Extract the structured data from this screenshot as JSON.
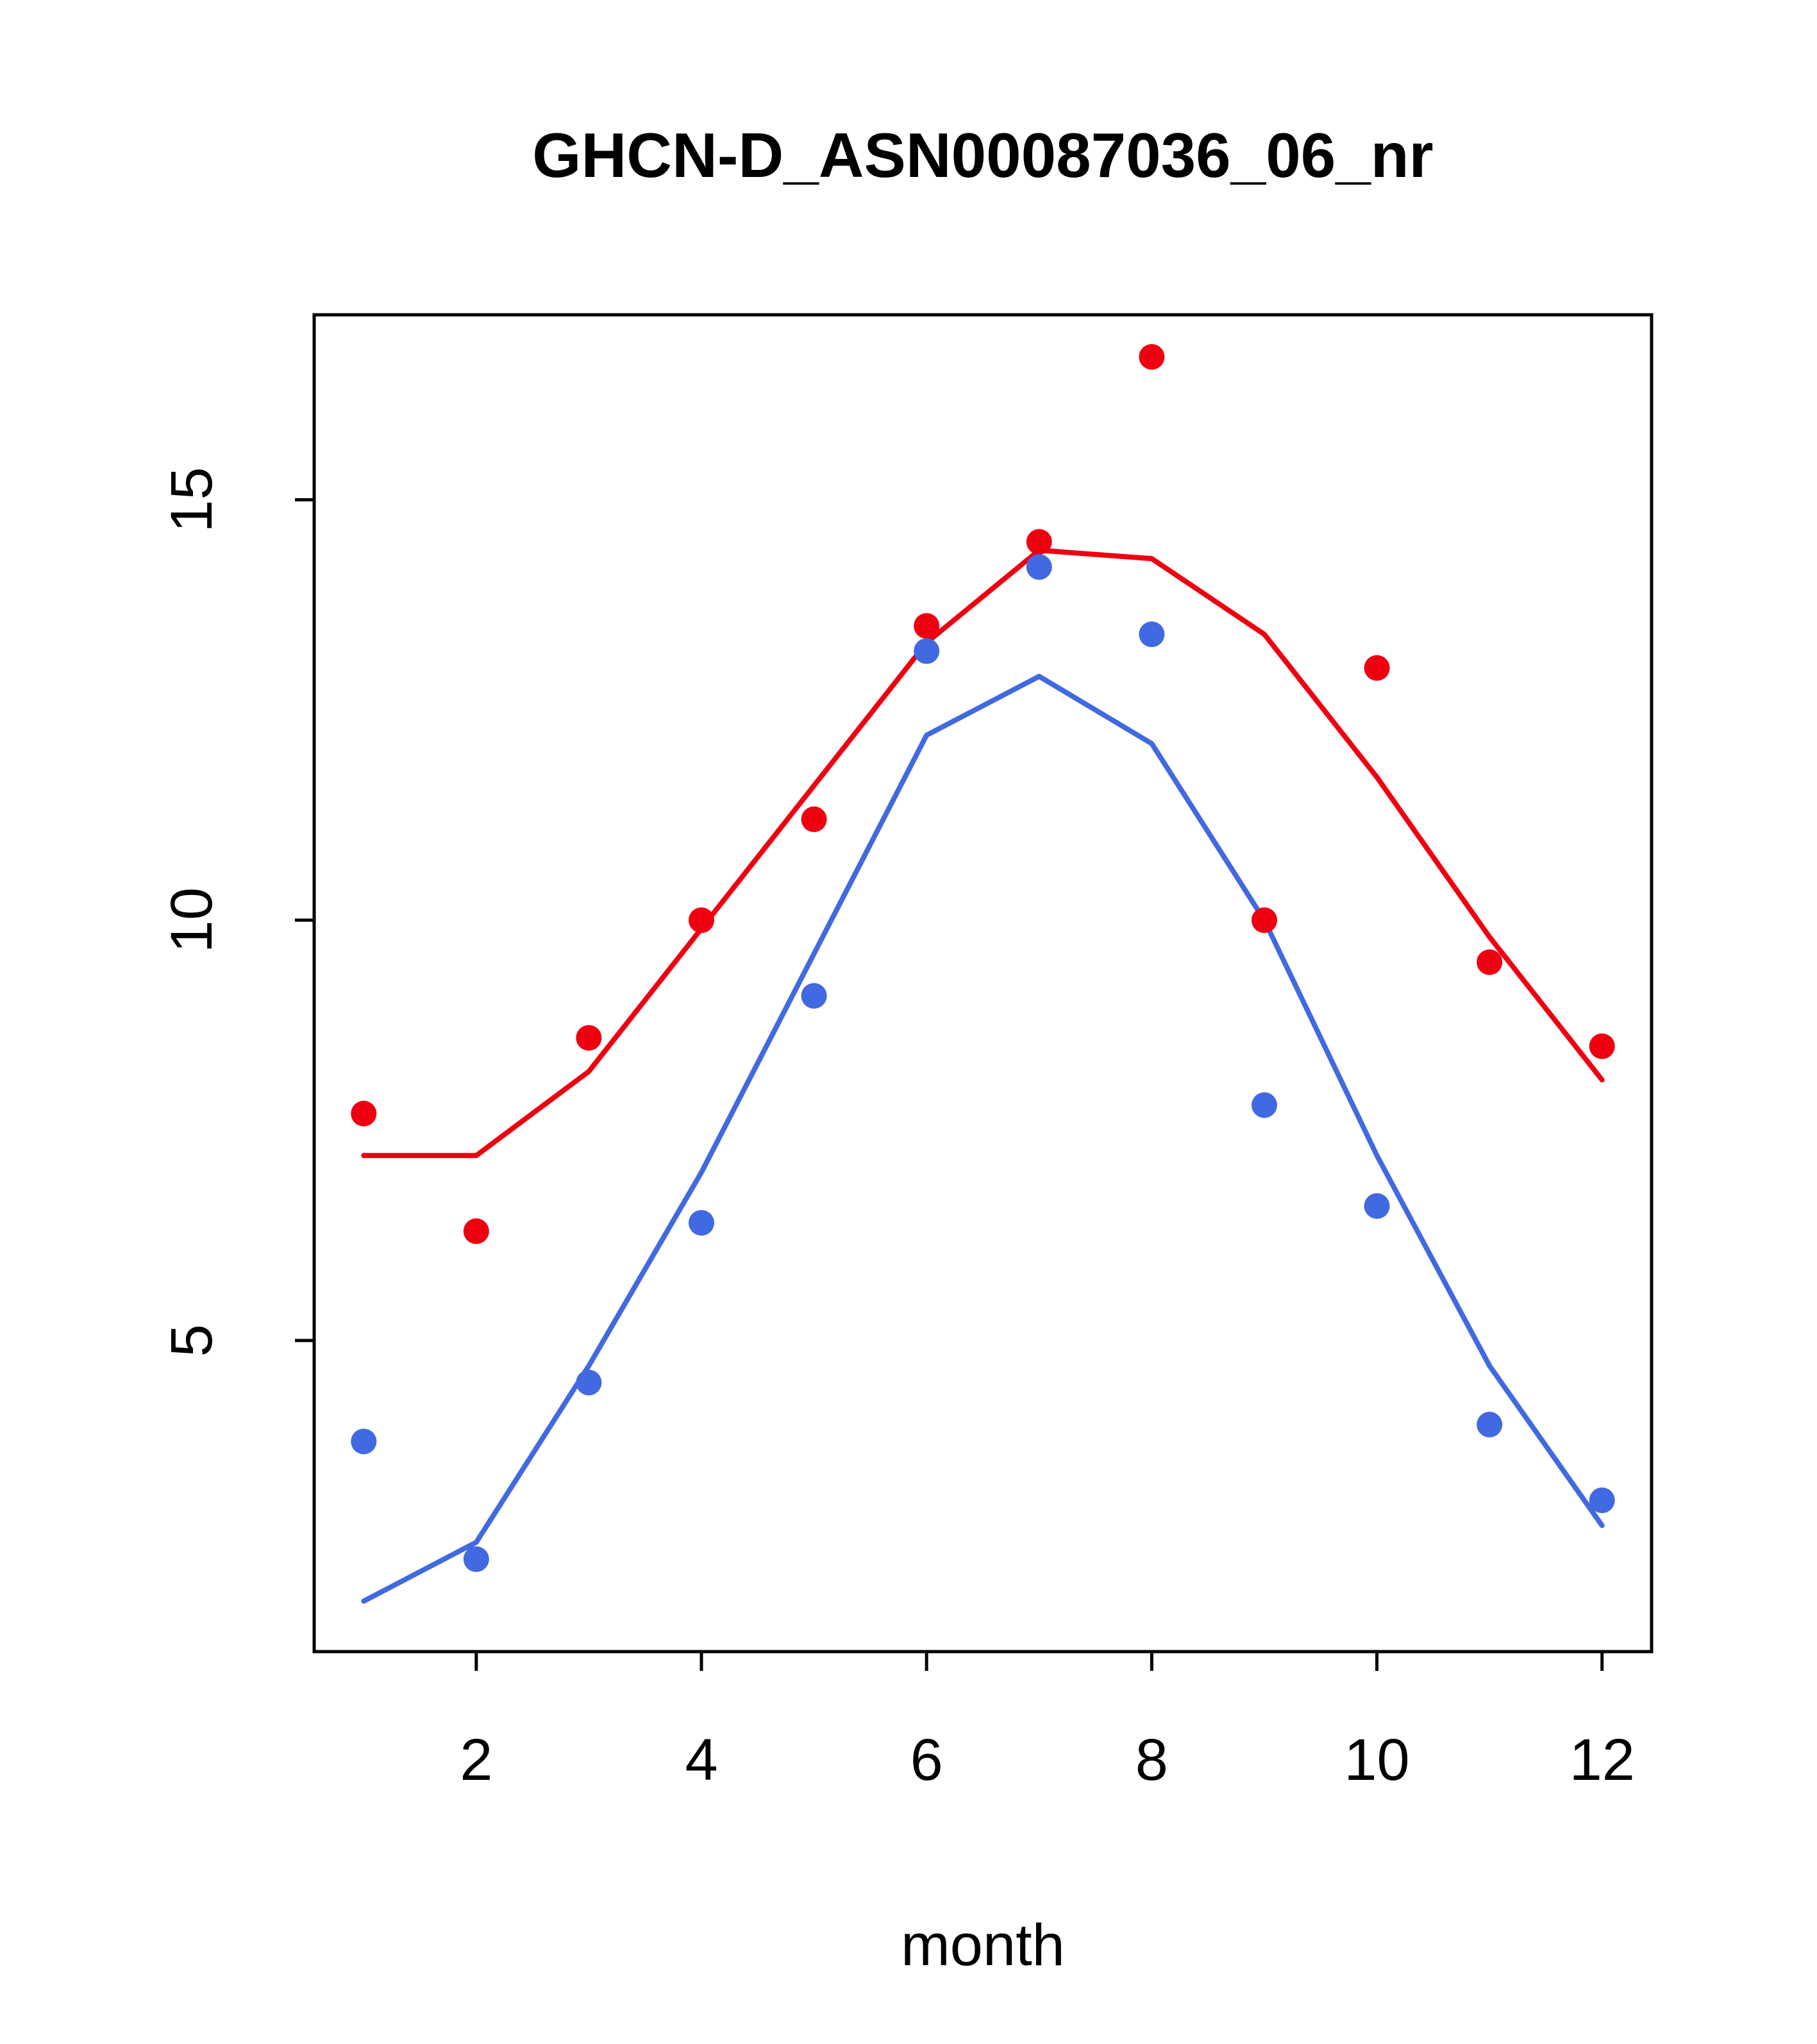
{
  "chart_data": {
    "type": "line",
    "title": "GHCN-D_ASN00087036_06_nr",
    "xlabel": "month",
    "ylabel": "",
    "x": [
      1,
      2,
      3,
      4,
      5,
      6,
      7,
      8,
      9,
      10,
      11,
      12
    ],
    "series": [
      {
        "name": "red-points",
        "type": "scatter",
        "color": "#ee0011",
        "values": [
          7.7,
          6.3,
          8.6,
          10.0,
          11.2,
          13.5,
          14.5,
          16.7,
          10.0,
          13.0,
          9.5,
          8.5
        ]
      },
      {
        "name": "red-line",
        "type": "line",
        "color": "#ee0011",
        "values": [
          7.2,
          7.2,
          8.2,
          9.9,
          11.6,
          13.3,
          14.4,
          14.3,
          13.4,
          11.7,
          9.8,
          8.1
        ]
      },
      {
        "name": "blue-points",
        "type": "scatter",
        "color": "#4169e1",
        "values": [
          3.8,
          2.4,
          4.5,
          6.4,
          9.1,
          13.2,
          14.2,
          13.4,
          7.8,
          6.6,
          4.0,
          3.1
        ]
      },
      {
        "name": "blue-line",
        "type": "line",
        "color": "#4169e1",
        "values": [
          1.9,
          2.6,
          4.7,
          7.0,
          9.6,
          12.2,
          12.9,
          12.1,
          10.0,
          7.2,
          4.7,
          2.8
        ]
      }
    ],
    "xlim": [
      0.56,
      12.44
    ],
    "ylim": [
      1.3,
      17.2
    ],
    "x_ticks": [
      2,
      4,
      6,
      8,
      10,
      12
    ],
    "y_ticks": [
      5,
      10,
      15
    ],
    "grid": "off",
    "legend": "none",
    "axis_color": "#000000"
  }
}
